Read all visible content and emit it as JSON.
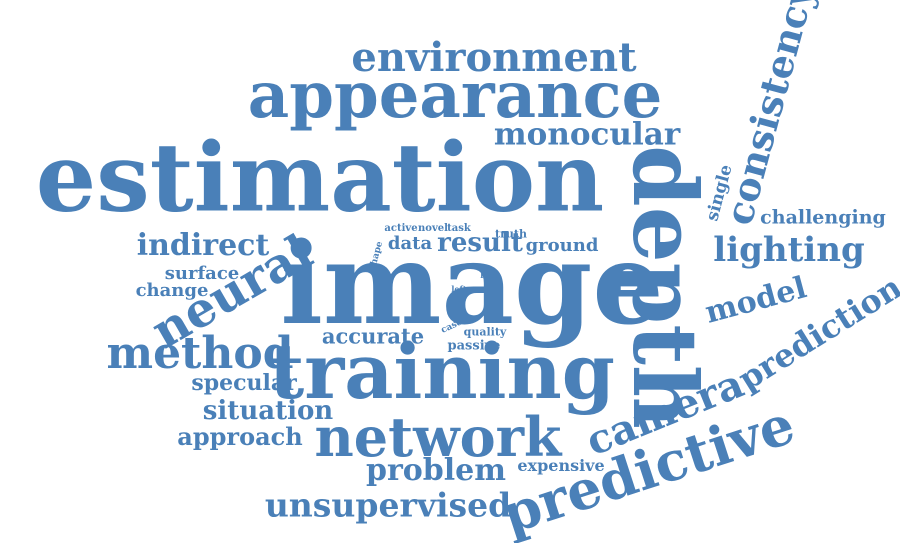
{
  "accent_color": "#4a80b8",
  "words": {
    "estimation": "estimation",
    "image": "image",
    "appearance": "appearance",
    "training": "training",
    "depth": "depth",
    "network": "network",
    "environment": "environment",
    "monocular": "monocular",
    "consistency": "consistency",
    "predictive": "predictive",
    "prediction": "prediction",
    "camera": "camera",
    "neural": "neural",
    "method": "method",
    "indirect": "indirect",
    "lighting": "lighting",
    "model": "model",
    "unsupervised": "unsupervised",
    "problem": "problem",
    "approach": "approach",
    "situation": "situation",
    "specular": "specular",
    "surface": "surface",
    "change": "change",
    "accurate": "accurate",
    "challenging": "challenging",
    "single": "single",
    "result": "result",
    "data": "data",
    "ground": "ground",
    "active": "active",
    "novel": "novel",
    "task": "task",
    "truth": "truth",
    "shape": "shape",
    "loss": "loss",
    "left": "left",
    "case": "case",
    "quality": "quality",
    "passive": "passive",
    "expensive": "expensive"
  }
}
